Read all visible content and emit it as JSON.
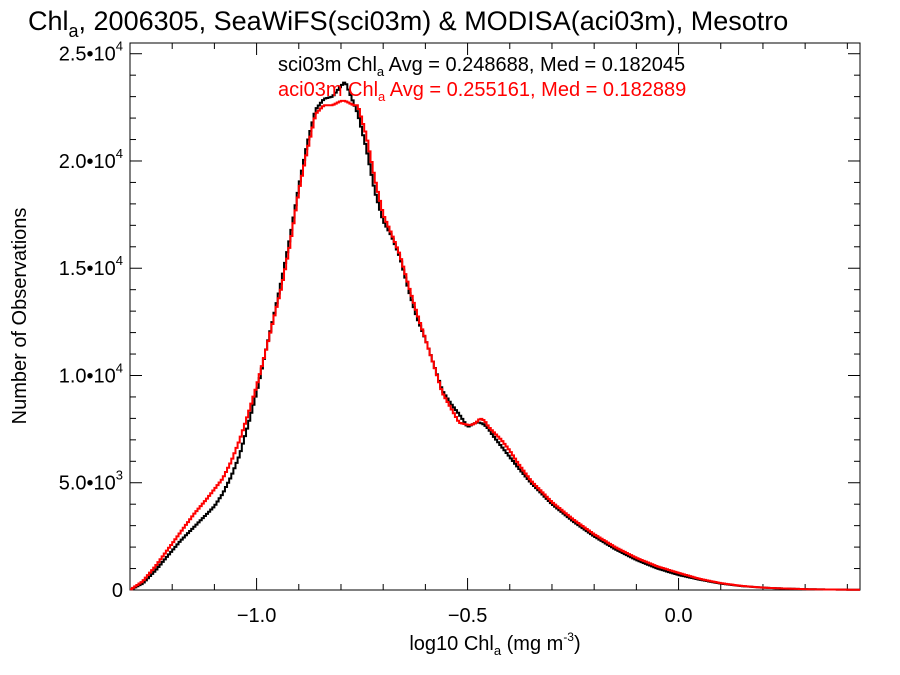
{
  "title": {
    "prefix": "Chl",
    "sub": "a",
    "rest": ", 2006305, SeaWiFS(sci03m) & MODISA(aci03m), Mesotro"
  },
  "legend": [
    {
      "pre": "sci03m Chl",
      "sub": "a",
      "post": " Avg = 0.248688, Med = 0.182045",
      "color": "#000000"
    },
    {
      "pre": "aci03m Chl",
      "sub": "a",
      "post": " Avg = 0.255161, Med = 0.182889",
      "color": "#ff0000"
    }
  ],
  "axes": {
    "xlabel": {
      "pre": "log10 Chl",
      "sub": "a",
      "mid": " (mg m",
      "sup": "-3",
      "post": ")"
    },
    "ylabel": "Number of Observations",
    "xticks": [
      {
        "value": -1.0,
        "label": "−1.0"
      },
      {
        "value": -0.5,
        "label": "−0.5"
      },
      {
        "value": 0.0,
        "label": "0.0"
      }
    ],
    "yticks": [
      {
        "value": 0,
        "base": "0",
        "exp": ""
      },
      {
        "value": 5000,
        "base": "5.0•10",
        "exp": "3"
      },
      {
        "value": 10000,
        "base": "1.0•10",
        "exp": "4"
      },
      {
        "value": 15000,
        "base": "1.5•10",
        "exp": "4"
      },
      {
        "value": 20000,
        "base": "2.0•10",
        "exp": "4"
      },
      {
        "value": 25000,
        "base": "2.5•10",
        "exp": "4"
      }
    ]
  },
  "chart_data": {
    "type": "line",
    "xlim": [
      -1.3,
      0.43
    ],
    "ylim": [
      0,
      25500
    ],
    "grid": false,
    "legend_position": "top-center",
    "series": [
      {
        "name": "sci03m",
        "color": "#000000",
        "x": [
          -1.3,
          -1.27,
          -1.24,
          -1.21,
          -1.18,
          -1.15,
          -1.12,
          -1.1,
          -1.08,
          -1.06,
          -1.04,
          -1.02,
          -1.0,
          -0.98,
          -0.96,
          -0.94,
          -0.92,
          -0.9,
          -0.88,
          -0.86,
          -0.84,
          -0.82,
          -0.8,
          -0.79,
          -0.78,
          -0.77,
          -0.76,
          -0.74,
          -0.72,
          -0.7,
          -0.68,
          -0.66,
          -0.64,
          -0.62,
          -0.6,
          -0.58,
          -0.56,
          -0.54,
          -0.52,
          -0.5,
          -0.49,
          -0.48,
          -0.47,
          -0.46,
          -0.45,
          -0.44,
          -0.42,
          -0.4,
          -0.38,
          -0.35,
          -0.3,
          -0.25,
          -0.2,
          -0.15,
          -0.1,
          -0.05,
          0.0,
          0.05,
          0.1,
          0.15,
          0.2,
          0.25,
          0.3,
          0.35,
          0.4,
          0.43
        ],
        "y": [
          0,
          300,
          900,
          1600,
          2300,
          2900,
          3500,
          3900,
          4500,
          5300,
          6300,
          7700,
          9200,
          11000,
          12700,
          14500,
          16500,
          18800,
          20800,
          22400,
          22900,
          23000,
          23500,
          23700,
          23200,
          22700,
          22200,
          20600,
          18600,
          17200,
          16500,
          15500,
          14000,
          12700,
          11700,
          10500,
          9300,
          8700,
          8200,
          7600,
          7700,
          7800,
          7800,
          7700,
          7500,
          7200,
          6700,
          6200,
          5700,
          5000,
          4000,
          3200,
          2500,
          1900,
          1400,
          1000,
          700,
          480,
          300,
          180,
          110,
          70,
          40,
          25,
          15,
          10
        ]
      },
      {
        "name": "aci03m",
        "color": "#ff0000",
        "x": [
          -1.3,
          -1.27,
          -1.24,
          -1.21,
          -1.18,
          -1.15,
          -1.12,
          -1.1,
          -1.08,
          -1.06,
          -1.04,
          -1.02,
          -1.0,
          -0.98,
          -0.96,
          -0.94,
          -0.92,
          -0.9,
          -0.88,
          -0.86,
          -0.84,
          -0.82,
          -0.8,
          -0.79,
          -0.78,
          -0.77,
          -0.76,
          -0.74,
          -0.72,
          -0.7,
          -0.68,
          -0.66,
          -0.64,
          -0.62,
          -0.6,
          -0.58,
          -0.56,
          -0.54,
          -0.52,
          -0.5,
          -0.49,
          -0.48,
          -0.47,
          -0.46,
          -0.45,
          -0.44,
          -0.42,
          -0.4,
          -0.38,
          -0.35,
          -0.3,
          -0.25,
          -0.2,
          -0.15,
          -0.1,
          -0.05,
          0.0,
          0.05,
          0.1,
          0.15,
          0.2,
          0.25,
          0.3,
          0.35,
          0.4,
          0.43
        ],
        "y": [
          0,
          400,
          1100,
          1900,
          2700,
          3500,
          4200,
          4700,
          5200,
          6000,
          7000,
          8200,
          9500,
          11000,
          12600,
          14200,
          16200,
          18600,
          20500,
          22200,
          22600,
          22600,
          22800,
          22800,
          22700,
          22600,
          22600,
          21200,
          19200,
          17500,
          16600,
          15600,
          14200,
          12900,
          11700,
          10500,
          9200,
          8500,
          7800,
          7700,
          7700,
          7800,
          8000,
          7900,
          7600,
          7400,
          7000,
          6500,
          5900,
          5100,
          4100,
          3300,
          2600,
          2000,
          1500,
          1100,
          800,
          520,
          320,
          190,
          110,
          70,
          40,
          25,
          15,
          10
        ]
      }
    ]
  }
}
